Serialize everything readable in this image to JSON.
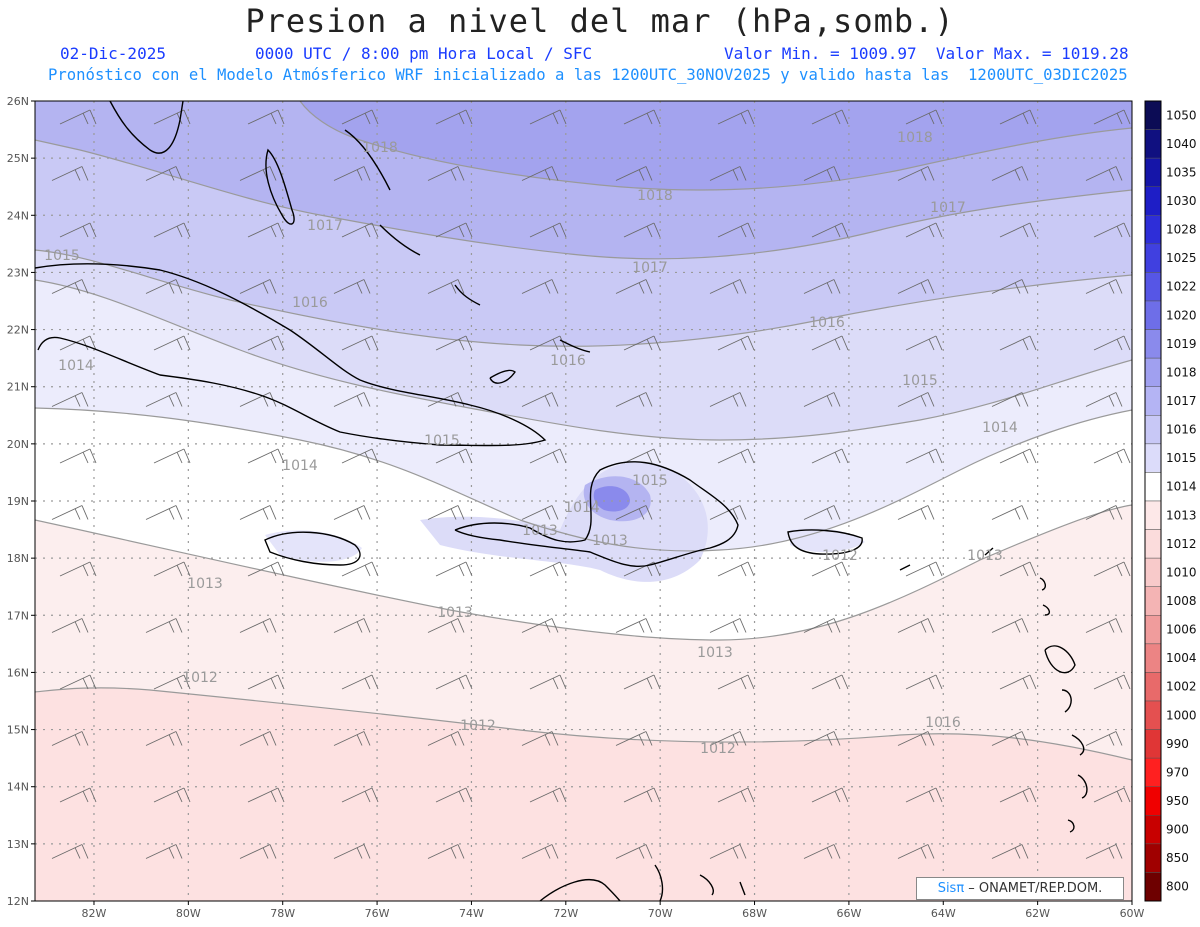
{
  "header": {
    "title": "Presion a nivel del mar (hPa,somb.)",
    "date": "02-Dic-2025",
    "time": "0000 UTC / 8:00 pm Hora Local / SFC",
    "minmax": "Valor Min. = 1009.97  Valor Max. = 1019.28",
    "model_line": "Pronóstico con el Modelo Atmósferico WRF inicializado a las 1200UTC_30NOV2025 y valido hasta las  1200UTC_03DIC2025"
  },
  "lat_labels": [
    "26N",
    "25N",
    "24N",
    "23N",
    "22N",
    "21N",
    "20N",
    "19N",
    "18N",
    "17N",
    "16N",
    "15N",
    "14N",
    "13N",
    "12N"
  ],
  "lon_labels": [
    "82W",
    "80W",
    "78W",
    "76W",
    "74W",
    "72W",
    "70W",
    "68W",
    "66W",
    "64W",
    "62W",
    "60W"
  ],
  "colorbar": {
    "labels": [
      "1050",
      "1040",
      "1035",
      "1030",
      "1028",
      "1025",
      "1022",
      "1020",
      "1019",
      "1018",
      "1017",
      "1016",
      "1015",
      "1014",
      "1013",
      "1012",
      "1010",
      "1008",
      "1006",
      "1004",
      "1002",
      "1000",
      "990",
      "970",
      "950",
      "900",
      "850",
      "800"
    ],
    "colors": [
      "#0c0c55",
      "#101080",
      "#1515a8",
      "#1e1ec6",
      "#2e2ed8",
      "#4040e0",
      "#5656e6",
      "#6e6ee8",
      "#8a8aec",
      "#a0a0f0",
      "#b4b4f4",
      "#c8c8f6",
      "#dcdcfa",
      "#ffffff",
      "#fde8e8",
      "#fbdcdc",
      "#f8caca",
      "#f4b4b4",
      "#f09c9c",
      "#ec8484",
      "#e86a6a",
      "#e45050",
      "#e03636",
      "#ff2020",
      "#f00000",
      "#c80000",
      "#a00000",
      "#6e0000"
    ]
  },
  "contour_labels": [
    {
      "text": "1018"
    },
    {
      "text": "1018"
    },
    {
      "text": "1018"
    },
    {
      "text": "1017"
    },
    {
      "text": "1017"
    },
    {
      "text": "1017"
    },
    {
      "text": "1016"
    },
    {
      "text": "1016"
    },
    {
      "text": "1016"
    },
    {
      "text": "1015"
    },
    {
      "text": "1015"
    },
    {
      "text": "1015"
    },
    {
      "text": "1014"
    },
    {
      "text": "1014"
    },
    {
      "text": "1014"
    },
    {
      "text": "1014"
    },
    {
      "text": "1013"
    },
    {
      "text": "1013"
    },
    {
      "text": "1013"
    },
    {
      "text": "1013"
    },
    {
      "text": "1013"
    },
    {
      "text": "1013"
    },
    {
      "text": "1012"
    },
    {
      "text": "1012"
    },
    {
      "text": "1012"
    },
    {
      "text": "1012"
    },
    {
      "text": "1016"
    },
    {
      "text": "1015"
    }
  ],
  "credit": {
    "brand": "Sisπ",
    "text": " – ONAMET/REP.DOM."
  }
}
